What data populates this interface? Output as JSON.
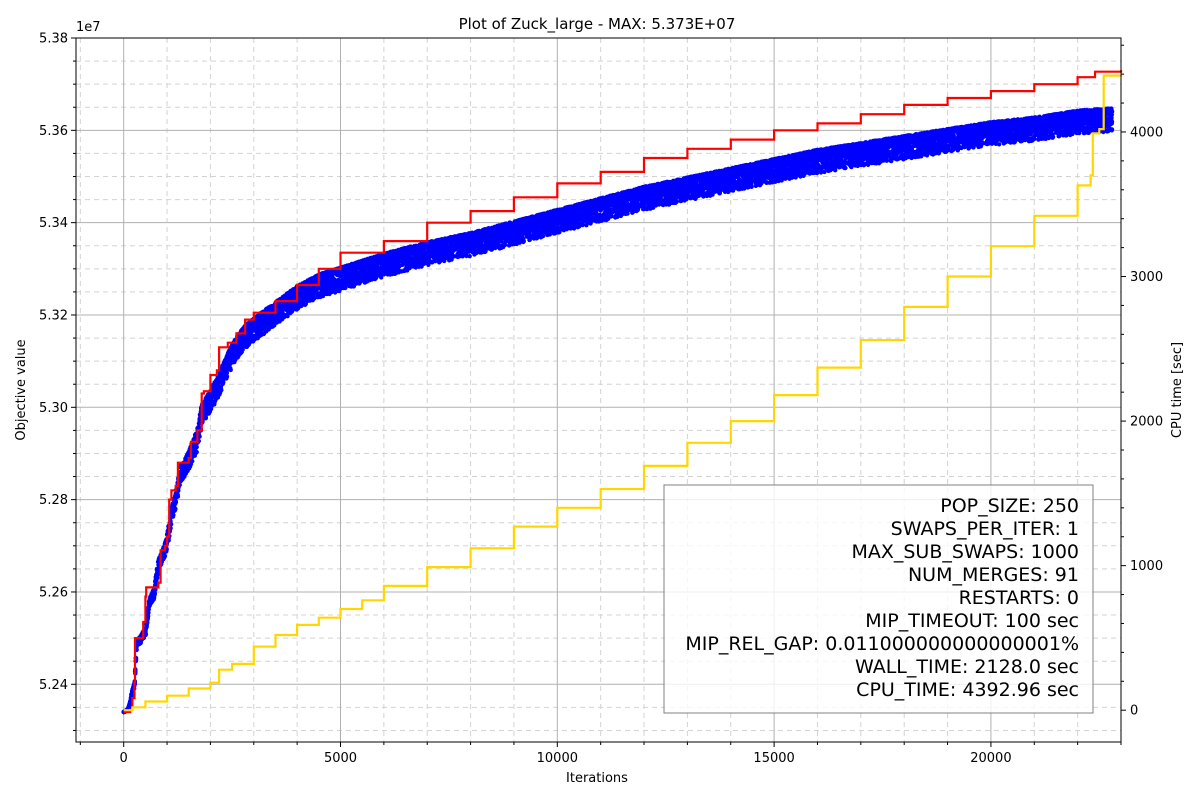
{
  "chart_data": {
    "type": "scatter",
    "title": "Plot of Zuck_large - MAX: 5.373E+07",
    "xlabel": "Iterations",
    "ylabel": "Objective value",
    "y2label": "CPU time [sec]",
    "y_offset_label": "1e7",
    "xlim": [
      -1100,
      23000
    ],
    "ylim": [
      52.275,
      53.8
    ],
    "y2lim": [
      -220,
      4650
    ],
    "x_ticks": [
      0,
      5000,
      10000,
      15000,
      20000
    ],
    "x_tick_labels": [
      "0",
      "5000",
      "10000",
      "15000",
      "20000"
    ],
    "y_ticks": [
      52.4,
      52.6,
      52.8,
      53.0,
      53.2,
      53.4,
      53.6,
      53.8
    ],
    "y_tick_labels": [
      "5.24",
      "5.26",
      "5.28",
      "5.30",
      "5.32",
      "5.34",
      "5.36",
      "5.38"
    ],
    "y2_ticks": [
      0,
      1000,
      2000,
      3000,
      4000
    ],
    "y2_tick_labels": [
      "0",
      "1000",
      "2000",
      "3000",
      "4000"
    ],
    "grid": true,
    "legend_placement": "lower-right",
    "colors": {
      "population": "#0000ff",
      "best": "#ff0000",
      "cpu_time": "#ffd700"
    },
    "series": [
      {
        "axis": "left",
        "style": "scatter",
        "x": [
          0,
          100,
          150,
          200,
          250,
          300,
          400,
          500,
          600,
          700,
          800,
          900,
          1000,
          1100,
          1200,
          1300,
          1400,
          1500,
          1600,
          1700,
          1800,
          2000,
          2200,
          2400,
          2600,
          2800,
          3000,
          3500,
          4000,
          4500,
          5000,
          6000,
          7000,
          8000,
          9000,
          10000,
          11000,
          12000,
          13000,
          14000,
          15000,
          16000,
          17000,
          18000,
          19000,
          20000,
          21000,
          22000,
          22800
        ],
        "y": [
          52.34,
          52.345,
          52.36,
          52.385,
          52.4,
          52.49,
          52.5,
          52.515,
          52.58,
          52.6,
          52.66,
          52.68,
          52.71,
          52.77,
          52.8,
          52.86,
          52.87,
          52.89,
          52.915,
          52.935,
          52.99,
          53.02,
          53.055,
          53.1,
          53.135,
          53.16,
          53.175,
          53.21,
          53.245,
          53.27,
          53.285,
          53.315,
          53.34,
          53.36,
          53.385,
          53.41,
          53.435,
          53.46,
          53.48,
          53.5,
          53.52,
          53.54,
          53.555,
          53.57,
          53.585,
          53.6,
          53.61,
          53.625,
          53.63
        ],
        "spread": [
          0.0,
          0.004,
          0.006,
          0.008,
          0.01,
          0.012,
          0.015,
          0.018,
          0.02,
          0.022,
          0.025,
          0.028,
          0.03,
          0.032,
          0.034,
          0.036,
          0.038,
          0.04,
          0.042,
          0.044,
          0.045,
          0.046,
          0.047,
          0.048,
          0.049,
          0.05,
          0.05,
          0.05,
          0.05,
          0.05,
          0.05,
          0.05,
          0.05,
          0.05,
          0.05,
          0.05,
          0.05,
          0.05,
          0.05,
          0.05,
          0.05,
          0.05,
          0.05,
          0.05,
          0.05,
          0.05,
          0.05,
          0.05,
          0.05
        ]
      },
      {
        "axis": "left",
        "style": "step",
        "x": [
          0,
          150,
          200,
          250,
          260,
          450,
          500,
          520,
          800,
          850,
          950,
          1000,
          1050,
          1100,
          1200,
          1250,
          1500,
          1550,
          1700,
          1800,
          1850,
          2000,
          2150,
          2200,
          2400,
          2600,
          2800,
          3000,
          3500,
          4000,
          4500,
          5000,
          6000,
          7000,
          8000,
          9000,
          10000,
          11000,
          12000,
          13000,
          14000,
          15000,
          16000,
          17000,
          18000,
          19000,
          20000,
          21000,
          22000,
          22400,
          23000
        ],
        "y": [
          52.34,
          52.345,
          52.37,
          52.405,
          52.5,
          52.535,
          52.59,
          52.61,
          52.62,
          52.69,
          52.7,
          52.72,
          52.8,
          52.82,
          52.83,
          52.88,
          52.89,
          52.925,
          52.95,
          53.03,
          53.035,
          53.07,
          53.08,
          53.13,
          53.14,
          53.16,
          53.19,
          53.205,
          53.23,
          53.265,
          53.3,
          53.335,
          53.36,
          53.4,
          53.425,
          53.455,
          53.485,
          53.51,
          53.54,
          53.56,
          53.58,
          53.6,
          53.615,
          53.635,
          53.655,
          53.67,
          53.685,
          53.7,
          53.715,
          53.727,
          53.73
        ]
      },
      {
        "axis": "right",
        "style": "step",
        "x": [
          0,
          200,
          500,
          1000,
          1500,
          2000,
          2200,
          2500,
          3000,
          3500,
          4000,
          4500,
          5000,
          5500,
          6000,
          7000,
          8000,
          9000,
          10000,
          11000,
          12000,
          13000,
          14000,
          15000,
          16000,
          17000,
          18000,
          19000,
          20000,
          21000,
          22000,
          22300,
          22350,
          22500,
          22600,
          23000
        ],
        "y": [
          0,
          20,
          60,
          100,
          150,
          190,
          280,
          320,
          440,
          520,
          590,
          640,
          700,
          760,
          860,
          990,
          1120,
          1270,
          1400,
          1530,
          1690,
          1850,
          2000,
          2180,
          2370,
          2560,
          2790,
          3000,
          3210,
          3420,
          3630,
          3700,
          3990,
          4020,
          4390,
          4393
        ]
      }
    ],
    "legend_lines": [
      "POP_SIZE: 250",
      "SWAPS_PER_ITER: 1",
      "MAX_SUB_SWAPS: 1000",
      "NUM_MERGES: 91",
      "RESTARTS: 0",
      "MIP_TIMEOUT: 100 sec",
      "MIP_REL_GAP: 0.011000000000000001%",
      "WALL_TIME: 2128.0 sec",
      "CPU_TIME: 4392.96 sec"
    ]
  }
}
